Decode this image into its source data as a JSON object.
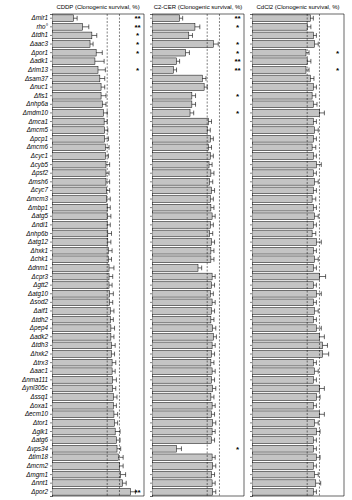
{
  "chart_data": [
    {
      "type": "bar",
      "orientation": "horizontal",
      "title": "CDDP (Clonogenic survival, %)",
      "tick_labels": "y",
      "color": "#c4c4c4",
      "categories": [
        "Δmir1",
        "rho°",
        "Δtdh1",
        "Δaac3",
        "Δpor1",
        "Δadk1",
        "Δrim13",
        "Δsam37",
        "Δnuc1",
        "Δfis1",
        "Δnhp6a",
        "Δmdm10",
        "Δmca1",
        "Δmcm5",
        "Δpcp1",
        "Δmcm6",
        "Δcyc1",
        "Δcyb5",
        "Δpsf2",
        "Δmsh6",
        "Δcyc7",
        "Δmcm3",
        "Δmbp1",
        "Δatg5",
        "Δndi1",
        "Δnhp6b",
        "Δatg12",
        "Δhxk1",
        "Δchk1",
        "Δdnm1",
        "Δcpr3",
        "Δgtt2",
        "Δatg10",
        "Δsod2",
        "Δaif1",
        "Δtdh2",
        "Δpep4",
        "Δadk2",
        "Δtdh3",
        "Δhxk2",
        "Δtrx3",
        "Δaac1",
        "Δnma111",
        "Δynl305c",
        "Δssq1",
        "Δoxa1",
        "Δecm10",
        "Δtor1",
        "Δglk1",
        "Δatg6",
        "Δvps34",
        "Δtim18",
        "Δmcm2",
        "Δmgm1",
        "Δnnt1",
        "Δpor2"
      ],
      "values": [
        35,
        50,
        65,
        62,
        72,
        70,
        75,
        78,
        80,
        80,
        82,
        84,
        85,
        86,
        86,
        87,
        87,
        88,
        88,
        88,
        89,
        89,
        90,
        90,
        90,
        91,
        91,
        92,
        92,
        93,
        93,
        93,
        94,
        94,
        95,
        95,
        96,
        96,
        97,
        97,
        98,
        98,
        99,
        99,
        100,
        100,
        101,
        102,
        103,
        105,
        106,
        108,
        110,
        112,
        115,
        128
      ],
      "errors": [
        6,
        10,
        8,
        5,
        10,
        15,
        12,
        8,
        6,
        8,
        6,
        6,
        5,
        5,
        6,
        6,
        5,
        6,
        5,
        6,
        5,
        6,
        5,
        6,
        5,
        6,
        5,
        6,
        5,
        8,
        6,
        5,
        6,
        5,
        6,
        5,
        6,
        5,
        6,
        5,
        6,
        5,
        6,
        5,
        6,
        5,
        6,
        5,
        8,
        6,
        6,
        8,
        6,
        8,
        6,
        8
      ],
      "stars": [
        "**",
        "**",
        "*",
        "*",
        "*",
        null,
        "*",
        null,
        null,
        null,
        null,
        null,
        null,
        null,
        null,
        null,
        null,
        null,
        null,
        null,
        null,
        null,
        null,
        null,
        null,
        null,
        null,
        null,
        null,
        null,
        null,
        null,
        null,
        null,
        null,
        null,
        null,
        null,
        null,
        null,
        null,
        null,
        null,
        null,
        null,
        null,
        null,
        null,
        null,
        null,
        null,
        null,
        null,
        null,
        null,
        "**"
      ],
      "xlim": [
        0,
        150
      ],
      "reference_lines": [
        90,
        110
      ]
    },
    {
      "type": "bar",
      "orientation": "horizontal",
      "title": "C2-CER (Clonogenic survival, %)",
      "tick_labels": false,
      "color": "#c4c4c4",
      "categories": [
        "Δmir1",
        "rho°",
        "Δtdh1",
        "Δaac3",
        "Δpor1",
        "Δadk1",
        "Δrim13",
        "Δsam37",
        "Δnuc1",
        "Δfis1",
        "Δnhp6a",
        "Δmdm10",
        "Δmca1",
        "Δmcm5",
        "Δpcp1",
        "Δmcm6",
        "Δcyc1",
        "Δcyb5",
        "Δpsf2",
        "Δmsh6",
        "Δcyc7",
        "Δmcm3",
        "Δmbp1",
        "Δatg5",
        "Δndi1",
        "Δnhp6b",
        "Δatg12",
        "Δhxk1",
        "Δchk1",
        "Δdnm1",
        "Δcpr3",
        "Δgtt2",
        "Δatg10",
        "Δsod2",
        "Δaif1",
        "Δtdh2",
        "Δpep4",
        "Δadk2",
        "Δtdh3",
        "Δhxk2",
        "Δtrx3",
        "Δaac1",
        "Δnma111",
        "Δynl305c",
        "Δssq1",
        "Δoxa1",
        "Δecm10",
        "Δtor1",
        "Δglk1",
        "Δatg6",
        "Δvps34",
        "Δtim18",
        "Δmcm2",
        "Δmgm1",
        "Δnnt1",
        "Δpor2"
      ],
      "values": [
        45,
        70,
        60,
        100,
        55,
        40,
        35,
        82,
        85,
        65,
        65,
        62,
        92,
        90,
        95,
        92,
        95,
        93,
        96,
        94,
        97,
        95,
        96,
        98,
        95,
        94,
        97,
        96,
        96,
        75,
        98,
        97,
        95,
        98,
        97,
        96,
        99,
        100,
        98,
        97,
        96,
        98,
        97,
        99,
        96,
        98,
        97,
        99,
        98,
        97,
        40,
        98,
        99,
        97,
        98,
        99
      ],
      "errors": [
        5,
        8,
        6,
        8,
        6,
        5,
        5,
        6,
        5,
        6,
        6,
        6,
        5,
        5,
        5,
        5,
        5,
        5,
        5,
        5,
        5,
        5,
        5,
        5,
        5,
        5,
        5,
        5,
        5,
        6,
        5,
        5,
        5,
        5,
        5,
        5,
        5,
        5,
        5,
        5,
        5,
        5,
        5,
        5,
        5,
        5,
        5,
        5,
        5,
        5,
        8,
        5,
        5,
        5,
        5,
        5
      ],
      "stars": [
        "**",
        "*",
        null,
        "*",
        "*",
        "**",
        "**",
        null,
        null,
        "*",
        null,
        "*",
        null,
        null,
        null,
        null,
        null,
        null,
        null,
        null,
        null,
        null,
        null,
        null,
        null,
        null,
        null,
        null,
        null,
        null,
        null,
        null,
        null,
        null,
        null,
        null,
        null,
        null,
        null,
        null,
        null,
        null,
        null,
        null,
        null,
        null,
        null,
        null,
        null,
        null,
        "*",
        null,
        null,
        null,
        null,
        null
      ],
      "xlim": [
        0,
        150
      ],
      "reference_lines": [
        90,
        110
      ]
    },
    {
      "type": "bar",
      "orientation": "horizontal",
      "title": "CdCl2 (Clonogenic survival, %)",
      "tick_labels": false,
      "color": "#c4c4c4",
      "categories": [
        "Δmir1",
        "rho°",
        "Δtdh1",
        "Δaac3",
        "Δpor1",
        "Δadk1",
        "Δrim13",
        "Δsam37",
        "Δnuc1",
        "Δfis1",
        "Δnhp6a",
        "Δmdm10",
        "Δmca1",
        "Δmcm5",
        "Δpcp1",
        "Δmcm6",
        "Δcyc1",
        "Δcyb5",
        "Δpsf2",
        "Δmsh6",
        "Δcyc7",
        "Δmcm3",
        "Δmbp1",
        "Δatg5",
        "Δndi1",
        "Δnhp6b",
        "Δatg12",
        "Δhxk1",
        "Δchk1",
        "Δdnm1",
        "Δcpr3",
        "Δgtt2",
        "Δatg10",
        "Δsod2",
        "Δaif1",
        "Δtdh2",
        "Δpep4",
        "Δadk2",
        "Δtdh3",
        "Δhxk2",
        "Δtrx3",
        "Δaac1",
        "Δnma111",
        "Δynl305c",
        "Δssq1",
        "Δoxa1",
        "Δecm10",
        "Δtor1",
        "Δglk1",
        "Δatg6",
        "Δvps34",
        "Δtim18",
        "Δmcm2",
        "Δmgm1",
        "Δnnt1",
        "Δpor2"
      ],
      "values": [
        95,
        90,
        100,
        102,
        88,
        90,
        88,
        95,
        100,
        98,
        100,
        110,
        100,
        102,
        100,
        98,
        100,
        105,
        100,
        102,
        100,
        98,
        100,
        102,
        100,
        98,
        105,
        100,
        102,
        100,
        110,
        100,
        105,
        100,
        102,
        100,
        105,
        110,
        115,
        115,
        100,
        102,
        100,
        110,
        105,
        100,
        110,
        102,
        105,
        100,
        100,
        105,
        100,
        102,
        104,
        100
      ],
      "errors": [
        5,
        6,
        5,
        6,
        5,
        6,
        5,
        6,
        5,
        6,
        6,
        8,
        5,
        6,
        5,
        6,
        5,
        8,
        5,
        6,
        5,
        6,
        5,
        6,
        5,
        6,
        8,
        5,
        6,
        5,
        10,
        5,
        8,
        5,
        6,
        5,
        8,
        8,
        8,
        10,
        5,
        6,
        5,
        8,
        6,
        5,
        8,
        6,
        6,
        5,
        5,
        6,
        5,
        6,
        8,
        5
      ],
      "stars": [
        null,
        null,
        null,
        null,
        "*",
        null,
        "*",
        null,
        null,
        null,
        null,
        null,
        null,
        null,
        null,
        null,
        null,
        null,
        null,
        null,
        null,
        null,
        null,
        null,
        null,
        null,
        null,
        null,
        null,
        null,
        null,
        null,
        null,
        null,
        null,
        null,
        null,
        null,
        null,
        null,
        null,
        null,
        null,
        null,
        null,
        null,
        null,
        null,
        null,
        null,
        null,
        null,
        null,
        null,
        null,
        null
      ],
      "xlim": [
        0,
        150
      ],
      "reference_lines": [
        90,
        110
      ]
    }
  ]
}
